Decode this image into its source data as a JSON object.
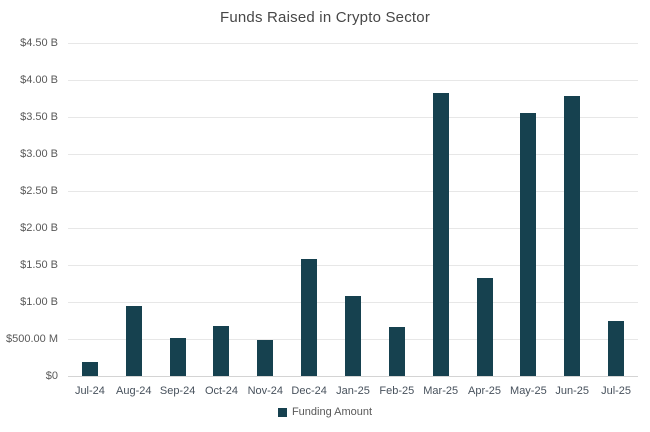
{
  "chart_data": {
    "type": "bar",
    "title": "Funds Raised in Crypto Sector",
    "series_name": "Funding Amount",
    "value_unit": "USD billions",
    "categories": [
      "Jul-24",
      "Aug-24",
      "Sep-24",
      "Oct-24",
      "Nov-24",
      "Dec-24",
      "Jan-25",
      "Feb-25",
      "Mar-25",
      "Apr-25",
      "May-25",
      "Jun-25",
      "Jul-25"
    ],
    "values": [
      0.19,
      0.95,
      0.52,
      0.68,
      0.49,
      1.58,
      1.08,
      0.66,
      3.82,
      1.32,
      3.56,
      3.79,
      0.75
    ],
    "ylim": [
      0,
      4.5
    ],
    "yticks": [
      {
        "value": 0,
        "label": "$0"
      },
      {
        "value": 0.5,
        "label": "$500.00 M"
      },
      {
        "value": 1,
        "label": "$1.00 B"
      },
      {
        "value": 1.5,
        "label": "$1.50 B"
      },
      {
        "value": 2,
        "label": "$2.00 B"
      },
      {
        "value": 2.5,
        "label": "$2.50 B"
      },
      {
        "value": 3,
        "label": "$3.00 B"
      },
      {
        "value": 3.5,
        "label": "$3.50 B"
      },
      {
        "value": 4,
        "label": "$4.00 B"
      },
      {
        "value": 4.5,
        "label": "$4.50 B"
      }
    ],
    "grid": true,
    "legend_position": "bottom",
    "bar_color": "#16414f",
    "gridline_color": "#e7e7e7",
    "axisline_color": "#d4d4d4"
  }
}
